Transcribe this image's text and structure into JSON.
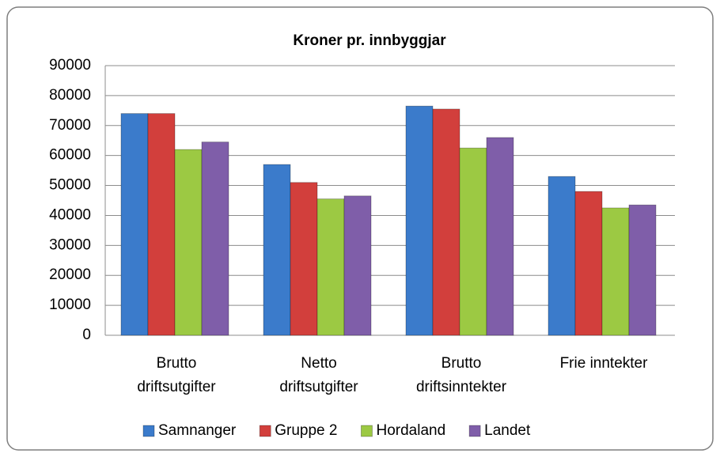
{
  "chart_data": {
    "type": "bar",
    "title": "Kroner pr. innbyggjar",
    "categories": [
      [
        "Brutto",
        "driftsutgifter"
      ],
      [
        "Netto",
        "driftsutgifter"
      ],
      [
        "Brutto",
        "driftsinntekter"
      ],
      [
        "Frie inntekter"
      ]
    ],
    "series": [
      {
        "name": "Samnanger",
        "color": "#3b7bcb",
        "values": [
          74000,
          57000,
          76500,
          53000
        ]
      },
      {
        "name": "Gruppe 2",
        "color": "#d23f3c",
        "values": [
          74000,
          51000,
          75500,
          48000
        ]
      },
      {
        "name": "Hordaland",
        "color": "#9cc943",
        "values": [
          62000,
          45500,
          62500,
          42500
        ]
      },
      {
        "name": "Landet",
        "color": "#7f5ea9",
        "values": [
          64500,
          46500,
          66000,
          43500
        ]
      }
    ],
    "ylim": [
      0,
      90000
    ],
    "yticks": [
      0,
      10000,
      20000,
      30000,
      40000,
      50000,
      60000,
      70000,
      80000,
      90000
    ],
    "grid": true,
    "legend": "bottom"
  }
}
